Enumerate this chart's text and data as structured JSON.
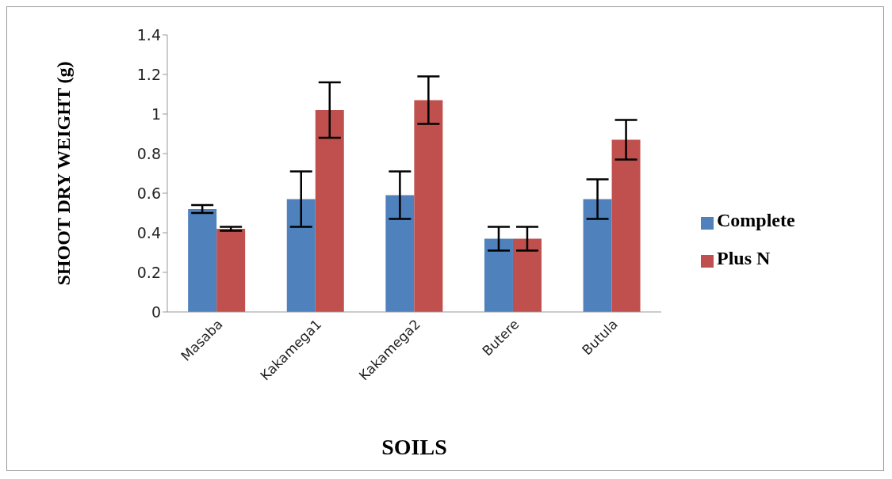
{
  "chart_data": {
    "type": "bar",
    "xlabel": "SOILS",
    "ylabel": "SHOOT DRY WEIGHT (g)",
    "categories": [
      "Masaba",
      "Kakamega1",
      "Kakamega2",
      "Butere",
      "Butula"
    ],
    "series": [
      {
        "name": "Complete",
        "color": "#4f81bd",
        "values": [
          0.52,
          0.57,
          0.59,
          0.37,
          0.57
        ],
        "errors": [
          0.02,
          0.14,
          0.12,
          0.06,
          0.1
        ]
      },
      {
        "name": "Plus N",
        "color": "#c0504d",
        "values": [
          0.42,
          1.02,
          1.07,
          0.37,
          0.87
        ],
        "errors": [
          0.01,
          0.14,
          0.12,
          0.06,
          0.1
        ]
      }
    ],
    "ylim": [
      0,
      1.4
    ],
    "yticks": [
      0,
      0.2,
      0.4,
      0.6,
      0.8,
      1,
      1.2,
      1.4
    ],
    "grid": false,
    "legend": "right"
  }
}
